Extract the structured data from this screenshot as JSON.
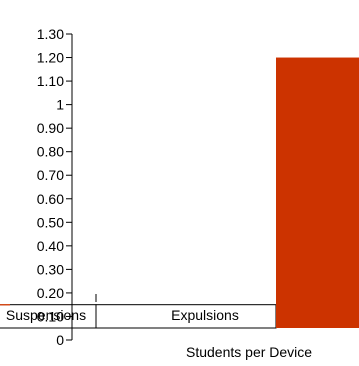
{
  "chart_data": {
    "type": "bar",
    "y_ticks": [
      "0",
      "0.10",
      "0.20",
      "0.30",
      "0.40",
      "0.50",
      "0.60",
      "0.70",
      "0.80",
      "0.90",
      "1",
      "1.10",
      "1.20",
      "1.30"
    ],
    "ylim": [
      0,
      1.3
    ],
    "categories": [
      "Suspensions",
      "Expulsions",
      "Students per Device"
    ],
    "values": [
      0.15,
      0.15,
      1.2
    ],
    "xlabel": "Students per Device",
    "bar_colors": [
      "#d14a1a",
      "#d14a1a",
      "#cc3300"
    ],
    "grid": false
  }
}
